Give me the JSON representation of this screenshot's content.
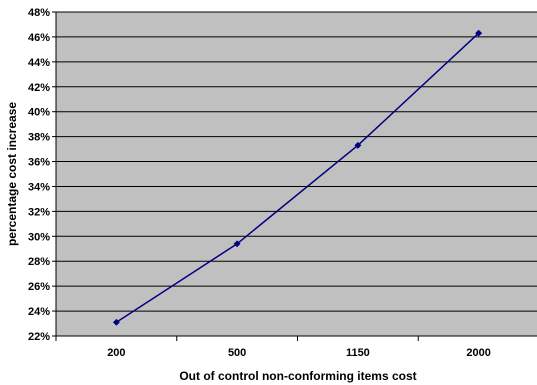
{
  "colors": {
    "plot_background": "#c0c0c0",
    "grid": "#000000",
    "series_line": "#000080",
    "page_background": "#ffffff"
  },
  "chart_data": {
    "type": "line",
    "title": "",
    "xlabel": "Out of control non-conforming items cost",
    "ylabel": "percentage cost increase",
    "categories": [
      "200",
      "500",
      "1150",
      "2000"
    ],
    "series": [
      {
        "values": [
          23.1,
          29.4,
          37.3,
          46.3
        ]
      }
    ],
    "ylim": [
      22,
      48
    ],
    "ytick_step": 2,
    "ytick_format": "percent",
    "grid": true,
    "legend": "none",
    "marker": "diamond"
  }
}
